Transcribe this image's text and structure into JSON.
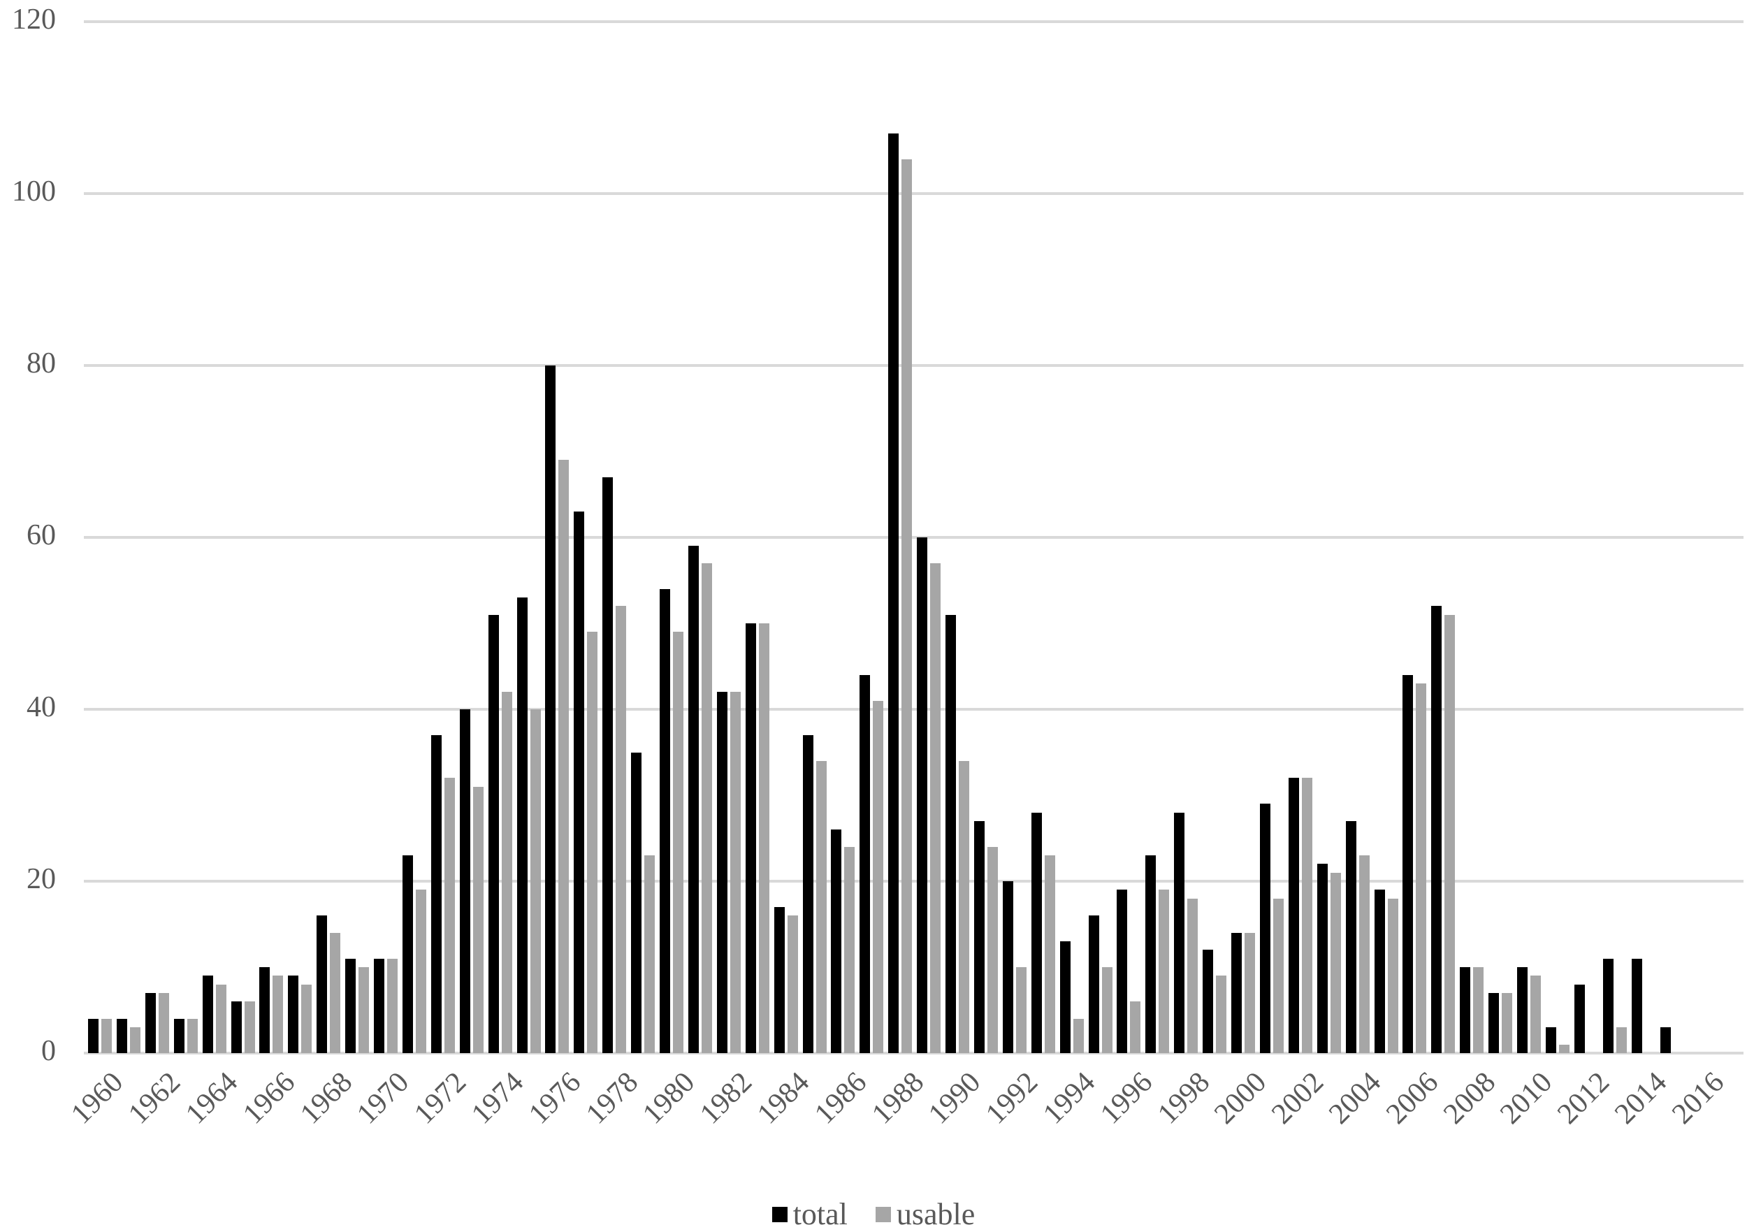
{
  "chart_data": {
    "type": "bar",
    "title": "",
    "xlabel": "",
    "ylabel": "",
    "ylim": [
      0,
      120
    ],
    "yticks": [
      0,
      20,
      40,
      60,
      80,
      100,
      120
    ],
    "grid": true,
    "legend_position": "bottom",
    "categories": [
      1960,
      1961,
      1962,
      1963,
      1964,
      1965,
      1966,
      1967,
      1968,
      1969,
      1970,
      1971,
      1972,
      1973,
      1974,
      1975,
      1976,
      1977,
      1978,
      1979,
      1980,
      1981,
      1982,
      1983,
      1984,
      1985,
      1986,
      1987,
      1988,
      1989,
      1990,
      1991,
      1992,
      1993,
      1994,
      1995,
      1996,
      1997,
      1998,
      1999,
      2000,
      2001,
      2002,
      2003,
      2004,
      2005,
      2006,
      2007,
      2008,
      2009,
      2010,
      2011,
      2012,
      2013,
      2014,
      2015,
      2016
    ],
    "xtick_labels": [
      "1960",
      "1962",
      "1964",
      "1966",
      "1968",
      "1970",
      "1972",
      "1974",
      "1976",
      "1978",
      "1980",
      "1982",
      "1984",
      "1986",
      "1988",
      "1990",
      "1992",
      "1994",
      "1996",
      "1998",
      "2000",
      "2002",
      "2004",
      "2006",
      "2008",
      "2010",
      "2012",
      "2014",
      "2016"
    ],
    "series": [
      {
        "name": "total",
        "color": "#000000",
        "values": [
          4,
          4,
          7,
          4,
          9,
          6,
          10,
          9,
          16,
          11,
          11,
          23,
          37,
          40,
          51,
          53,
          80,
          63,
          67,
          35,
          54,
          59,
          42,
          50,
          17,
          37,
          26,
          44,
          107,
          60,
          51,
          27,
          20,
          28,
          13,
          16,
          19,
          23,
          28,
          12,
          14,
          29,
          32,
          22,
          27,
          19,
          44,
          52,
          10,
          7,
          10,
          3,
          8,
          11,
          11,
          3,
          0
        ]
      },
      {
        "name": "usable",
        "color": "#a6a6a6",
        "values": [
          4,
          3,
          7,
          4,
          8,
          6,
          9,
          8,
          14,
          10,
          11,
          19,
          32,
          31,
          42,
          40,
          69,
          49,
          52,
          23,
          49,
          57,
          42,
          50,
          16,
          34,
          24,
          41,
          104,
          57,
          34,
          24,
          10,
          23,
          4,
          10,
          6,
          19,
          18,
          9,
          14,
          18,
          32,
          21,
          23,
          18,
          43,
          51,
          10,
          7,
          9,
          1,
          0,
          3,
          0,
          0,
          0
        ]
      }
    ]
  },
  "legend": {
    "items": [
      {
        "label": "total",
        "color": "#000000"
      },
      {
        "label": "usable",
        "color": "#a6a6a6"
      }
    ]
  }
}
